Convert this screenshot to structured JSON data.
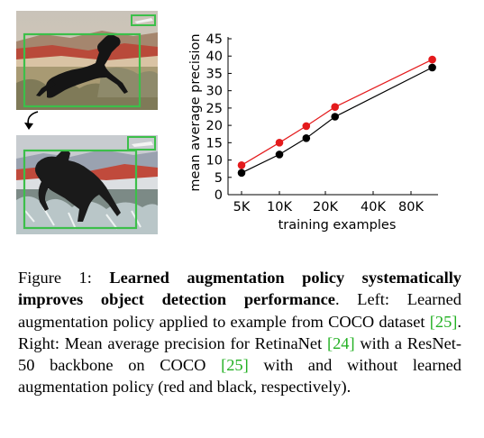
{
  "figure": {
    "chart_data": {
      "type": "line",
      "xlabel": "training examples",
      "ylabel": "mean average precision",
      "x_ticks": [
        "5K",
        "10K",
        "20K",
        "40K",
        "80K"
      ],
      "y_ticks": [
        "0",
        "5",
        "10",
        "15",
        "20",
        "25",
        "30",
        "35",
        "40",
        "45"
      ],
      "ylim": [
        0,
        45
      ],
      "grid": false,
      "series": [
        {
          "color": "#e41a1c",
          "x": [
            5000,
            10000,
            15000,
            23000,
            118000
          ],
          "y": [
            8.5,
            15.0,
            19.8,
            25.3,
            39.0
          ]
        },
        {
          "color": "#000000",
          "x": [
            5000,
            10000,
            15000,
            23000,
            118000
          ],
          "y": [
            6.3,
            11.6,
            16.3,
            22.5,
            36.7
          ]
        }
      ]
    },
    "images": [
      {
        "name": "original-example",
        "description": "dog leaping over desert scrub, green bounding boxes"
      },
      {
        "name": "augmented-example",
        "description": "same photo after learned augmentation, green bounding boxes"
      }
    ]
  },
  "caption": {
    "label": "Figure 1:",
    "bold_title": "Learned augmentation policy systematically improves object detection performance",
    "part1": ". Left: Learned augmentation policy applied to example from COCO dataset ",
    "cite1": "[25]",
    "part2": ". Right: Mean average precision for RetinaNet ",
    "cite2": "[24]",
    "part3": " with a ResNet-50 backbone on COCO ",
    "cite3": "[25]",
    "part4": " with and without learned augmentation policy (red and black, respec­tively)."
  }
}
